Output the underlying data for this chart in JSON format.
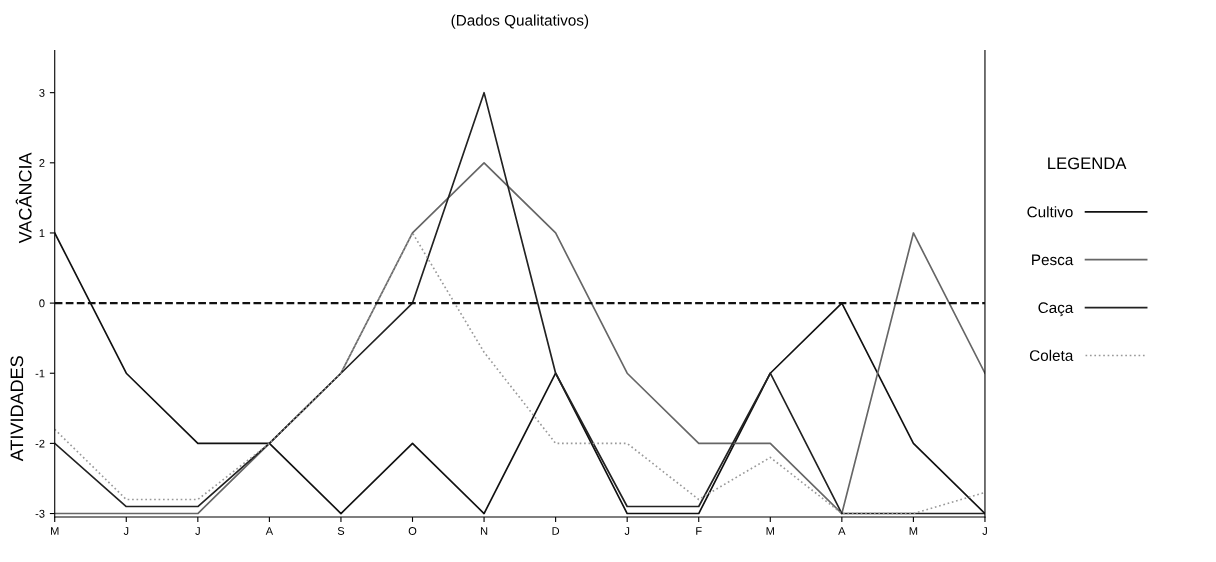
{
  "chart_data": {
    "type": "line",
    "title": "(Dados Qualitativos)",
    "ylabel": "ATIVIDADES",
    "annotations": [
      "VACÂNCIA"
    ],
    "categories": [
      "M",
      "J",
      "J",
      "A",
      "S",
      "O",
      "N",
      "D",
      "J",
      "F",
      "M",
      "A",
      "M",
      "J"
    ],
    "series": [
      {
        "name": "Cultivo",
        "color": "#111111",
        "line_style": "solid",
        "values": [
          1,
          -1,
          -2,
          -2,
          -3,
          -2,
          -3,
          -1,
          -3,
          -3,
          -1,
          0,
          -2,
          -3
        ]
      },
      {
        "name": "Pesca",
        "color": "#666666",
        "line_style": "solid",
        "values": [
          -3,
          -3,
          -3,
          -2,
          -1,
          1,
          2,
          1,
          -1,
          -2,
          -2,
          -3,
          1,
          -1
        ]
      },
      {
        "name": "Caça",
        "color": "#222222",
        "line_style": "solid",
        "values": [
          -2,
          -2.9,
          -2.9,
          -2,
          -1,
          0,
          3,
          -1,
          -2.9,
          -2.9,
          -1,
          -3,
          -3,
          -3
        ]
      },
      {
        "name": "Coleta",
        "color": "#999999",
        "line_style": "dotted",
        "values": [
          -1.8,
          -2.8,
          -2.8,
          -2,
          -1,
          1,
          -0.7,
          -2,
          -2,
          -2.8,
          -2.2,
          -3,
          -3,
          -2.7
        ]
      }
    ],
    "ylim": [
      -3.05,
      3.6
    ],
    "yticks": [
      -3,
      -2,
      -1,
      0,
      1,
      2,
      3
    ],
    "ref_lines": [
      {
        "axis": "y",
        "value": 0,
        "color": "#111111",
        "line_style": "dashed"
      }
    ],
    "legend": "right",
    "legend_title": "LEGENDA",
    "grid": false
  }
}
